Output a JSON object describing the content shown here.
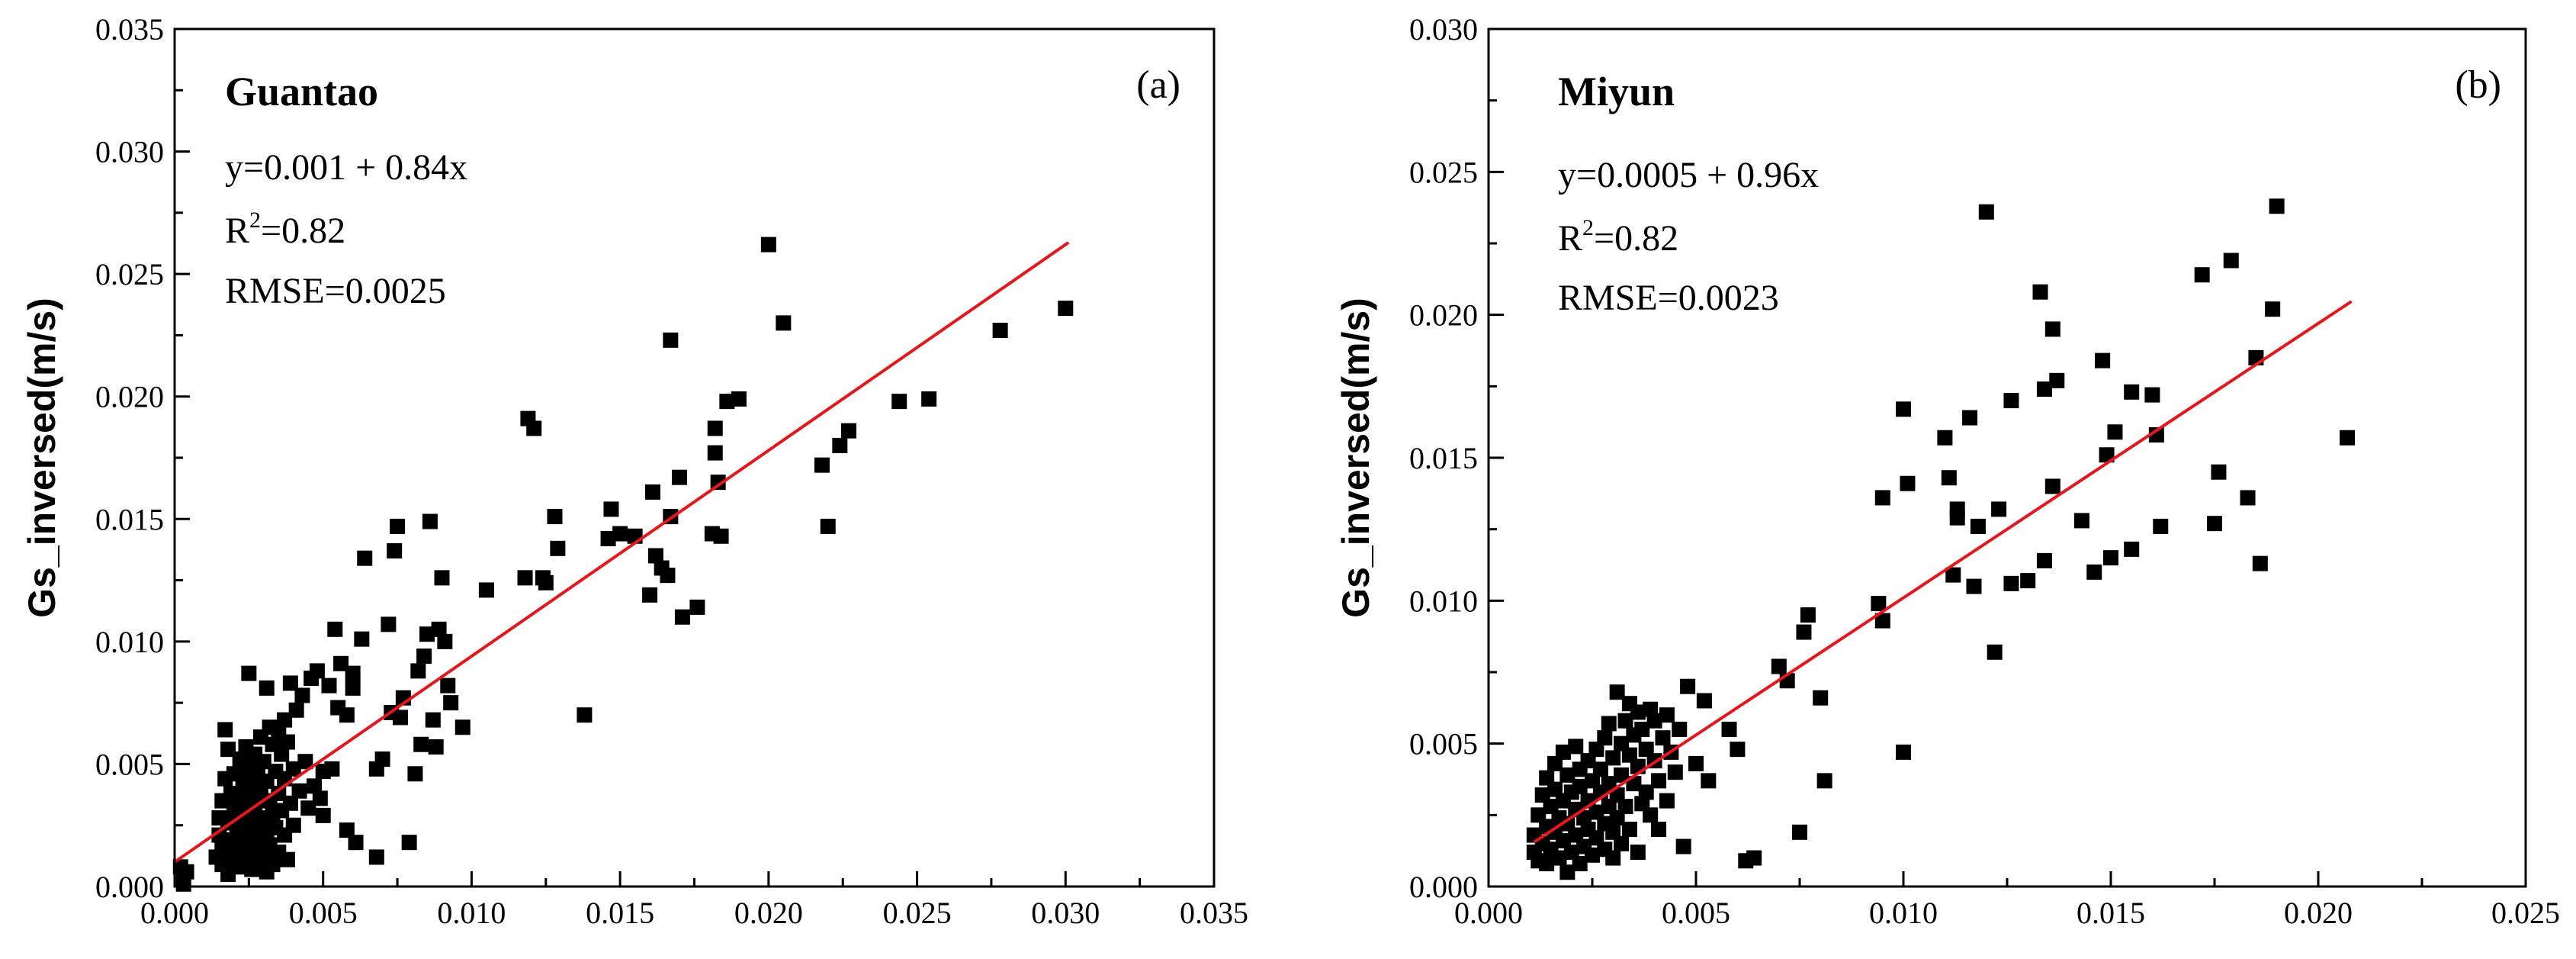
{
  "chart_data": [
    {
      "type": "scatter",
      "panel": "(a)",
      "site": "Guantao",
      "ylabel": "Gs_inversed(m/s)",
      "xlim": [
        0,
        0.035
      ],
      "ylim": [
        0,
        0.035
      ],
      "xticks": [
        "0.000",
        "0.005",
        "0.010",
        "0.015",
        "0.020",
        "0.025",
        "0.030",
        "0.035"
      ],
      "yticks": [
        "0.000",
        "0.005",
        "0.010",
        "0.015",
        "0.020",
        "0.025",
        "0.030",
        "0.035"
      ],
      "equation": "y=0.001 + 0.84x",
      "r2_prefix": "R",
      "r2_sup": "2",
      "r2_value": "=0.82",
      "rmse": "RMSE=0.0025",
      "fit": {
        "intercept": 0.001,
        "slope": 0.84,
        "x_range": [
          0.0,
          0.0301
        ],
        "color": "#e8161b"
      },
      "points": [
        [
          0.0002,
          0.0008
        ],
        [
          0.0003,
          0.0004
        ],
        [
          0.0003,
          0.0001
        ],
        [
          0.0004,
          0.0006
        ],
        [
          0.0014,
          0.0012
        ],
        [
          0.0015,
          0.0021
        ],
        [
          0.0015,
          0.0028
        ],
        [
          0.0016,
          0.0035
        ],
        [
          0.0016,
          0.0009
        ],
        [
          0.0016,
          0.0017
        ],
        [
          0.0017,
          0.0064
        ],
        [
          0.0017,
          0.0044
        ],
        [
          0.0018,
          0.0056
        ],
        [
          0.0018,
          0.0026
        ],
        [
          0.0018,
          0.0005
        ],
        [
          0.0019,
          0.0038
        ],
        [
          0.0019,
          0.0013
        ],
        [
          0.002,
          0.0031
        ],
        [
          0.002,
          0.0046
        ],
        [
          0.002,
          0.0019
        ],
        [
          0.0021,
          0.0024
        ],
        [
          0.0021,
          0.0008
        ],
        [
          0.0021,
          0.0036
        ],
        [
          0.0022,
          0.0052
        ],
        [
          0.0022,
          0.0015
        ],
        [
          0.0022,
          0.0029
        ],
        [
          0.0023,
          0.0042
        ],
        [
          0.0023,
          0.0011
        ],
        [
          0.0023,
          0.0022
        ],
        [
          0.0024,
          0.0057
        ],
        [
          0.0024,
          0.0033
        ],
        [
          0.0024,
          0.0018
        ],
        [
          0.0025,
          0.0087
        ],
        [
          0.0025,
          0.0048
        ],
        [
          0.0025,
          0.0027
        ],
        [
          0.0025,
          0.0013
        ],
        [
          0.0026,
          0.0039
        ],
        [
          0.0026,
          0.0021
        ],
        [
          0.0026,
          0.0007
        ],
        [
          0.0027,
          0.0054
        ],
        [
          0.0027,
          0.0031
        ],
        [
          0.0027,
          0.0016
        ],
        [
          0.0028,
          0.0045
        ],
        [
          0.0028,
          0.0024
        ],
        [
          0.0028,
          0.001
        ],
        [
          0.0029,
          0.0061
        ],
        [
          0.0029,
          0.0037
        ],
        [
          0.0029,
          0.0019
        ],
        [
          0.003,
          0.0051
        ],
        [
          0.003,
          0.0028
        ],
        [
          0.003,
          0.0013
        ],
        [
          0.0031,
          0.0081
        ],
        [
          0.0031,
          0.0043
        ],
        [
          0.0031,
          0.0022
        ],
        [
          0.0031,
          0.0006
        ],
        [
          0.0032,
          0.0065
        ],
        [
          0.0032,
          0.0035
        ],
        [
          0.0032,
          0.0017
        ],
        [
          0.0033,
          0.0058
        ],
        [
          0.0033,
          0.0029
        ],
        [
          0.0033,
          0.0009
        ],
        [
          0.0034,
          0.0047
        ],
        [
          0.0034,
          0.0024
        ],
        [
          0.0035,
          0.0063
        ],
        [
          0.0035,
          0.0038
        ],
        [
          0.0035,
          0.0014
        ],
        [
          0.0036,
          0.0054
        ],
        [
          0.0036,
          0.0031
        ],
        [
          0.0037,
          0.0068
        ],
        [
          0.0037,
          0.0044
        ],
        [
          0.0037,
          0.0021
        ],
        [
          0.0038,
          0.0059
        ],
        [
          0.0038,
          0.0011
        ],
        [
          0.0039,
          0.0083
        ],
        [
          0.0039,
          0.0034
        ],
        [
          0.004,
          0.0048
        ],
        [
          0.004,
          0.0025
        ],
        [
          0.0041,
          0.0072
        ],
        [
          0.0042,
          0.0039
        ],
        [
          0.0043,
          0.0078
        ],
        [
          0.0044,
          0.0051
        ],
        [
          0.0045,
          0.0032
        ],
        [
          0.0046,
          0.0085
        ],
        [
          0.0047,
          0.0041
        ],
        [
          0.0048,
          0.0088
        ],
        [
          0.0049,
          0.0036
        ],
        [
          0.005,
          0.0029
        ],
        [
          0.005,
          0.0047
        ],
        [
          0.0052,
          0.0082
        ],
        [
          0.0053,
          0.0048
        ],
        [
          0.0054,
          0.0105
        ],
        [
          0.0055,
          0.0073
        ],
        [
          0.0056,
          0.0091
        ],
        [
          0.0058,
          0.007
        ],
        [
          0.0058,
          0.0023
        ],
        [
          0.006,
          0.0087
        ],
        [
          0.006,
          0.0081
        ],
        [
          0.0061,
          0.0018
        ],
        [
          0.0063,
          0.0101
        ],
        [
          0.0064,
          0.0134
        ],
        [
          0.0068,
          0.0048
        ],
        [
          0.0068,
          0.0012
        ],
        [
          0.007,
          0.0052
        ],
        [
          0.0072,
          0.0107
        ],
        [
          0.0073,
          0.0071
        ],
        [
          0.0074,
          0.0137
        ],
        [
          0.0075,
          0.0147
        ],
        [
          0.0076,
          0.0069
        ],
        [
          0.0077,
          0.0077
        ],
        [
          0.0079,
          0.0018
        ],
        [
          0.0081,
          0.0046
        ],
        [
          0.0082,
          0.0088
        ],
        [
          0.0083,
          0.0058
        ],
        [
          0.0084,
          0.0094
        ],
        [
          0.0085,
          0.0103
        ],
        [
          0.0086,
          0.0149
        ],
        [
          0.0087,
          0.0068
        ],
        [
          0.0088,
          0.0057
        ],
        [
          0.0089,
          0.0105
        ],
        [
          0.009,
          0.0126
        ],
        [
          0.0091,
          0.01
        ],
        [
          0.0092,
          0.0082
        ],
        [
          0.0093,
          0.0075
        ],
        [
          0.0097,
          0.0065
        ],
        [
          0.0105,
          0.0121
        ],
        [
          0.0118,
          0.0126
        ],
        [
          0.0119,
          0.0191
        ],
        [
          0.0121,
          0.0187
        ],
        [
          0.0124,
          0.0126
        ],
        [
          0.0125,
          0.0124
        ],
        [
          0.0128,
          0.0151
        ],
        [
          0.0129,
          0.0138
        ],
        [
          0.0138,
          0.007
        ],
        [
          0.0146,
          0.0142
        ],
        [
          0.0147,
          0.0154
        ],
        [
          0.015,
          0.0144
        ],
        [
          0.0155,
          0.0143
        ],
        [
          0.016,
          0.0119
        ],
        [
          0.0161,
          0.0161
        ],
        [
          0.0162,
          0.0135
        ],
        [
          0.0164,
          0.013
        ],
        [
          0.0166,
          0.0127
        ],
        [
          0.0167,
          0.0151
        ],
        [
          0.0167,
          0.0223
        ],
        [
          0.017,
          0.0167
        ],
        [
          0.0171,
          0.011
        ],
        [
          0.0176,
          0.0114
        ],
        [
          0.0181,
          0.0144
        ],
        [
          0.0182,
          0.0177
        ],
        [
          0.0182,
          0.0187
        ],
        [
          0.0183,
          0.0165
        ],
        [
          0.0184,
          0.0143
        ],
        [
          0.0186,
          0.0198
        ],
        [
          0.019,
          0.0199
        ],
        [
          0.02,
          0.0262
        ],
        [
          0.0205,
          0.023
        ],
        [
          0.0218,
          0.0172
        ],
        [
          0.022,
          0.0147
        ],
        [
          0.0224,
          0.018
        ],
        [
          0.0227,
          0.0186
        ],
        [
          0.0244,
          0.0198
        ],
        [
          0.0254,
          0.0199
        ],
        [
          0.0278,
          0.0227
        ],
        [
          0.03,
          0.0236
        ]
      ]
    },
    {
      "type": "scatter",
      "panel": "(b)",
      "site": "Miyun",
      "ylabel": "Gs_inversed(m/s)",
      "xlim": [
        0,
        0.025
      ],
      "ylim": [
        0,
        0.03
      ],
      "xticks": [
        "0.000",
        "0.005",
        "0.010",
        "0.015",
        "0.020",
        "0.025"
      ],
      "yticks": [
        "0.000",
        "0.005",
        "0.010",
        "0.015",
        "0.020",
        "0.025",
        "0.030"
      ],
      "equation": "y=0.0005 + 0.96x",
      "r2_prefix": "R",
      "r2_sup": "2",
      "r2_value": "=0.82",
      "rmse": "RMSE=0.0023",
      "fit": {
        "intercept": 0.0005,
        "slope": 0.96,
        "x_range": [
          0.0011,
          0.0208
        ],
        "color": "#e8161b"
      },
      "points": [
        [
          0.0011,
          0.0012
        ],
        [
          0.0011,
          0.0018
        ],
        [
          0.0012,
          0.0025
        ],
        [
          0.0012,
          0.0009
        ],
        [
          0.0013,
          0.0032
        ],
        [
          0.0013,
          0.0015
        ],
        [
          0.0014,
          0.0021
        ],
        [
          0.0014,
          0.0038
        ],
        [
          0.0014,
          0.0008
        ],
        [
          0.0015,
          0.0028
        ],
        [
          0.0015,
          0.0013
        ],
        [
          0.0016,
          0.0043
        ],
        [
          0.0016,
          0.0019
        ],
        [
          0.0016,
          0.0034
        ],
        [
          0.0017,
          0.0024
        ],
        [
          0.0017,
          0.001
        ],
        [
          0.0018,
          0.0047
        ],
        [
          0.0018,
          0.003
        ],
        [
          0.0018,
          0.0016
        ],
        [
          0.0019,
          0.0039
        ],
        [
          0.0019,
          0.0022
        ],
        [
          0.0019,
          0.0005
        ],
        [
          0.002,
          0.0033
        ],
        [
          0.002,
          0.0012
        ],
        [
          0.0021,
          0.0049
        ],
        [
          0.0021,
          0.0027
        ],
        [
          0.0021,
          0.0018
        ],
        [
          0.0022,
          0.0041
        ],
        [
          0.0022,
          0.0008
        ],
        [
          0.0022,
          0.0035
        ],
        [
          0.0023,
          0.0024
        ],
        [
          0.0023,
          0.0014
        ],
        [
          0.0024,
          0.0044
        ],
        [
          0.0024,
          0.003
        ],
        [
          0.0024,
          0.002
        ],
        [
          0.0025,
          0.0037
        ],
        [
          0.0025,
          0.0011
        ],
        [
          0.0026,
          0.0026
        ],
        [
          0.0026,
          0.0048
        ],
        [
          0.0026,
          0.0017
        ],
        [
          0.0027,
          0.0033
        ],
        [
          0.0027,
          0.0041
        ],
        [
          0.0028,
          0.0022
        ],
        [
          0.0028,
          0.0052
        ],
        [
          0.0028,
          0.0013
        ],
        [
          0.0029,
          0.0036
        ],
        [
          0.0029,
          0.0028
        ],
        [
          0.0029,
          0.0057
        ],
        [
          0.003,
          0.0019
        ],
        [
          0.003,
          0.0045
        ],
        [
          0.003,
          0.001
        ],
        [
          0.0031,
          0.0032
        ],
        [
          0.0031,
          0.0068
        ],
        [
          0.0031,
          0.0024
        ],
        [
          0.0032,
          0.005
        ],
        [
          0.0032,
          0.0039
        ],
        [
          0.0032,
          0.0015
        ],
        [
          0.0033,
          0.0058
        ],
        [
          0.0033,
          0.0028
        ],
        [
          0.0034,
          0.0046
        ],
        [
          0.0034,
          0.0064
        ],
        [
          0.0034,
          0.002
        ],
        [
          0.0035,
          0.0036
        ],
        [
          0.0035,
          0.0053
        ],
        [
          0.0036,
          0.0012
        ],
        [
          0.0036,
          0.0061
        ],
        [
          0.0036,
          0.0042
        ],
        [
          0.0037,
          0.0029
        ],
        [
          0.0037,
          0.0055
        ],
        [
          0.0038,
          0.0048
        ],
        [
          0.0038,
          0.0033
        ],
        [
          0.0039,
          0.0062
        ],
        [
          0.0039,
          0.0025
        ],
        [
          0.004,
          0.0044
        ],
        [
          0.004,
          0.0058
        ],
        [
          0.0041,
          0.0037
        ],
        [
          0.0041,
          0.002
        ],
        [
          0.0042,
          0.0052
        ],
        [
          0.0043,
          0.006
        ],
        [
          0.0043,
          0.003
        ],
        [
          0.0044,
          0.0047
        ],
        [
          0.0045,
          0.004
        ],
        [
          0.0046,
          0.0055
        ],
        [
          0.0047,
          0.0014
        ],
        [
          0.0048,
          0.007
        ],
        [
          0.005,
          0.0043
        ],
        [
          0.0052,
          0.0065
        ],
        [
          0.0053,
          0.0037
        ],
        [
          0.0058,
          0.0055
        ],
        [
          0.006,
          0.0048
        ],
        [
          0.0062,
          0.0009
        ],
        [
          0.0064,
          0.001
        ],
        [
          0.007,
          0.0077
        ],
        [
          0.0072,
          0.0072
        ],
        [
          0.0075,
          0.0019
        ],
        [
          0.0076,
          0.0089
        ],
        [
          0.0077,
          0.0095
        ],
        [
          0.008,
          0.0066
        ],
        [
          0.0081,
          0.0037
        ],
        [
          0.0094,
          0.0099
        ],
        [
          0.0095,
          0.0136
        ],
        [
          0.0095,
          0.0093
        ],
        [
          0.01,
          0.0167
        ],
        [
          0.01,
          0.0047
        ],
        [
          0.0101,
          0.0141
        ],
        [
          0.011,
          0.0157
        ],
        [
          0.0111,
          0.0143
        ],
        [
          0.0112,
          0.0109
        ],
        [
          0.0113,
          0.0132
        ],
        [
          0.0113,
          0.0129
        ],
        [
          0.0116,
          0.0164
        ],
        [
          0.0117,
          0.0105
        ],
        [
          0.0118,
          0.0126
        ],
        [
          0.012,
          0.0236
        ],
        [
          0.0122,
          0.0082
        ],
        [
          0.0123,
          0.0132
        ],
        [
          0.0126,
          0.0106
        ],
        [
          0.0126,
          0.017
        ],
        [
          0.013,
          0.0107
        ],
        [
          0.0133,
          0.0208
        ],
        [
          0.0134,
          0.0174
        ],
        [
          0.0134,
          0.0114
        ],
        [
          0.0136,
          0.014
        ],
        [
          0.0136,
          0.0195
        ],
        [
          0.0137,
          0.0177
        ],
        [
          0.0143,
          0.0128
        ],
        [
          0.0146,
          0.011
        ],
        [
          0.0148,
          0.0184
        ],
        [
          0.0149,
          0.0151
        ],
        [
          0.015,
          0.0115
        ],
        [
          0.0151,
          0.0159
        ],
        [
          0.0155,
          0.0173
        ],
        [
          0.0155,
          0.0118
        ],
        [
          0.016,
          0.0172
        ],
        [
          0.0161,
          0.0158
        ],
        [
          0.0162,
          0.0126
        ],
        [
          0.0172,
          0.0214
        ],
        [
          0.0175,
          0.0127
        ],
        [
          0.0176,
          0.0145
        ],
        [
          0.0179,
          0.0219
        ],
        [
          0.0183,
          0.0136
        ],
        [
          0.0185,
          0.0185
        ],
        [
          0.0186,
          0.0113
        ],
        [
          0.0189,
          0.0202
        ],
        [
          0.019,
          0.0238
        ],
        [
          0.0207,
          0.0157
        ]
      ]
    }
  ]
}
